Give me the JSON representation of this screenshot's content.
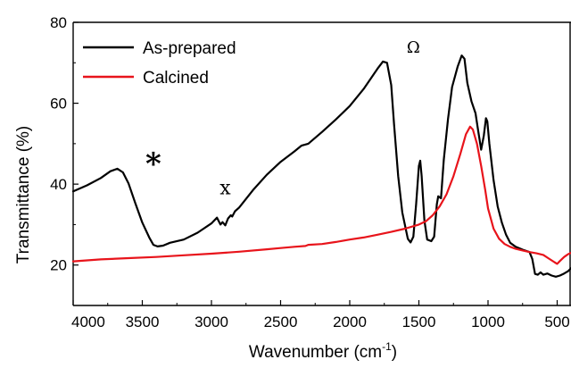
{
  "chart_data": {
    "type": "line",
    "xlabel": "Wavenumber (cm",
    "xlabel_superscript": "-1",
    "xlabel_close": ")",
    "ylabel": "Transmittance (%)",
    "xlim": [
      4000,
      400
    ],
    "x_reversed": true,
    "ylim": [
      10,
      80
    ],
    "xticks": [
      4000,
      3500,
      3000,
      2500,
      2000,
      1500,
      1000,
      500
    ],
    "yticks": [
      20,
      40,
      60,
      80
    ],
    "grid": false,
    "legend_placement": "top-left",
    "series": [
      {
        "name": "As-prepared",
        "color": "#000000",
        "points": [
          [
            4000,
            38.2
          ],
          [
            3900,
            39.7
          ],
          [
            3800,
            41.5
          ],
          [
            3730,
            43.2
          ],
          [
            3680,
            43.8
          ],
          [
            3640,
            42.9
          ],
          [
            3600,
            40.2
          ],
          [
            3550,
            35.2
          ],
          [
            3500,
            30.5
          ],
          [
            3450,
            26.8
          ],
          [
            3420,
            25.0
          ],
          [
            3390,
            24.6
          ],
          [
            3350,
            24.8
          ],
          [
            3300,
            25.5
          ],
          [
            3200,
            26.3
          ],
          [
            3100,
            28.0
          ],
          [
            3000,
            30.3
          ],
          [
            2960,
            31.7
          ],
          [
            2935,
            30.0
          ],
          [
            2920,
            30.6
          ],
          [
            2900,
            29.8
          ],
          [
            2880,
            31.5
          ],
          [
            2860,
            32.3
          ],
          [
            2850,
            32.0
          ],
          [
            2830,
            33.3
          ],
          [
            2800,
            34.2
          ],
          [
            2700,
            38.5
          ],
          [
            2600,
            42.3
          ],
          [
            2500,
            45.5
          ],
          [
            2400,
            48.1
          ],
          [
            2350,
            49.5
          ],
          [
            2300,
            50.0
          ],
          [
            2200,
            52.9
          ],
          [
            2100,
            56.0
          ],
          [
            2000,
            59.3
          ],
          [
            1900,
            63.5
          ],
          [
            1850,
            66.0
          ],
          [
            1800,
            68.5
          ],
          [
            1760,
            70.3
          ],
          [
            1730,
            70.0
          ],
          [
            1700,
            64.5
          ],
          [
            1680,
            55.0
          ],
          [
            1650,
            42.0
          ],
          [
            1620,
            33.0
          ],
          [
            1580,
            26.5
          ],
          [
            1560,
            25.6
          ],
          [
            1540,
            27.0
          ],
          [
            1520,
            35.0
          ],
          [
            1500,
            44.5
          ],
          [
            1490,
            45.8
          ],
          [
            1480,
            42.0
          ],
          [
            1460,
            31.0
          ],
          [
            1440,
            26.3
          ],
          [
            1410,
            25.9
          ],
          [
            1390,
            27.0
          ],
          [
            1370,
            35.0
          ],
          [
            1360,
            37.0
          ],
          [
            1340,
            36.5
          ],
          [
            1320,
            46.0
          ],
          [
            1290,
            56.0
          ],
          [
            1260,
            64.0
          ],
          [
            1220,
            69.0
          ],
          [
            1190,
            71.8
          ],
          [
            1170,
            71.0
          ],
          [
            1150,
            65.0
          ],
          [
            1120,
            60.5
          ],
          [
            1090,
            57.5
          ],
          [
            1070,
            53.0
          ],
          [
            1050,
            48.5
          ],
          [
            1030,
            52.0
          ],
          [
            1015,
            56.3
          ],
          [
            1005,
            55.5
          ],
          [
            990,
            50.0
          ],
          [
            960,
            41.0
          ],
          [
            930,
            34.5
          ],
          [
            900,
            30.5
          ],
          [
            870,
            27.5
          ],
          [
            840,
            25.5
          ],
          [
            800,
            24.5
          ],
          [
            750,
            23.8
          ],
          [
            700,
            23.2
          ],
          [
            680,
            21.5
          ],
          [
            660,
            17.8
          ],
          [
            640,
            17.6
          ],
          [
            620,
            18.2
          ],
          [
            600,
            17.6
          ],
          [
            570,
            17.9
          ],
          [
            540,
            17.4
          ],
          [
            510,
            17.1
          ],
          [
            480,
            17.4
          ],
          [
            450,
            17.9
          ],
          [
            420,
            18.5
          ],
          [
            400,
            19.2
          ]
        ]
      },
      {
        "name": "Calcined",
        "color": "#e8141b",
        "points": [
          [
            4000,
            20.9
          ],
          [
            3800,
            21.4
          ],
          [
            3600,
            21.7
          ],
          [
            3400,
            22.0
          ],
          [
            3200,
            22.4
          ],
          [
            3000,
            22.8
          ],
          [
            2800,
            23.3
          ],
          [
            2600,
            23.9
          ],
          [
            2500,
            24.2
          ],
          [
            2400,
            24.5
          ],
          [
            2320,
            24.7
          ],
          [
            2300,
            25.0
          ],
          [
            2200,
            25.2
          ],
          [
            2100,
            25.7
          ],
          [
            2000,
            26.3
          ],
          [
            1900,
            26.8
          ],
          [
            1800,
            27.5
          ],
          [
            1700,
            28.2
          ],
          [
            1600,
            29.0
          ],
          [
            1500,
            30.0
          ],
          [
            1450,
            30.8
          ],
          [
            1400,
            32.3
          ],
          [
            1350,
            34.5
          ],
          [
            1300,
            37.5
          ],
          [
            1250,
            42.0
          ],
          [
            1200,
            47.5
          ],
          [
            1160,
            52.3
          ],
          [
            1130,
            54.2
          ],
          [
            1110,
            53.5
          ],
          [
            1080,
            50.0
          ],
          [
            1050,
            44.5
          ],
          [
            1020,
            38.5
          ],
          [
            1000,
            34.0
          ],
          [
            960,
            29.0
          ],
          [
            920,
            26.5
          ],
          [
            880,
            25.2
          ],
          [
            840,
            24.5
          ],
          [
            800,
            24.0
          ],
          [
            750,
            23.6
          ],
          [
            700,
            23.2
          ],
          [
            650,
            22.9
          ],
          [
            600,
            22.5
          ],
          [
            560,
            21.6
          ],
          [
            520,
            20.7
          ],
          [
            500,
            20.3
          ],
          [
            480,
            21.0
          ],
          [
            450,
            22.0
          ],
          [
            420,
            22.7
          ],
          [
            400,
            23.0
          ]
        ]
      }
    ],
    "annotations": [
      {
        "text": "*",
        "x": 3420,
        "y": 42.5,
        "size": 34
      },
      {
        "text": "x",
        "x": 2900,
        "y": 37.5,
        "size": 22
      },
      {
        "text": "Ω",
        "x": 1540,
        "y": 72.5,
        "size": 18
      }
    ]
  }
}
